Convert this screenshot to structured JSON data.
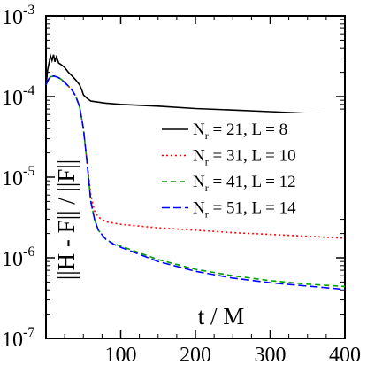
{
  "chart_data": {
    "type": "line",
    "title": "",
    "xlabel": "t / M",
    "ylabel": "||H - F|| / ||F||",
    "xlim": [
      0,
      400
    ],
    "ylim": [
      1e-07,
      0.001
    ],
    "yscale": "log",
    "grid": false,
    "legend_position": "right",
    "x_ticks": [
      {
        "value": 100,
        "label": "100"
      },
      {
        "value": 200,
        "label": "200"
      },
      {
        "value": 300,
        "label": "300"
      },
      {
        "value": 400,
        "label": "400"
      }
    ],
    "y_ticks": [
      {
        "exp": -3,
        "base": "10",
        "sup": "-3"
      },
      {
        "exp": -4,
        "base": "10",
        "sup": "-4"
      },
      {
        "exp": -5,
        "base": "10",
        "sup": "-5"
      },
      {
        "exp": -6,
        "base": "10",
        "sup": "-6"
      },
      {
        "exp": -7,
        "base": "10",
        "sup": "-7"
      }
    ],
    "series": [
      {
        "name": "N_r = 21, L = 8",
        "legend": {
          "n": "N",
          "sub": "r",
          "text": " = 21,  L = 8"
        },
        "color": "#000000",
        "dash": "",
        "points": [
          [
            0,
            0.00013
          ],
          [
            2,
            0.00021
          ],
          [
            4,
            0.00026
          ],
          [
            6,
            0.00032
          ],
          [
            8,
            0.00028
          ],
          [
            10,
            0.00033
          ],
          [
            12,
            0.00027
          ],
          [
            14,
            0.00031
          ],
          [
            17,
            0.00026
          ],
          [
            20,
            0.00025
          ],
          [
            25,
            0.00023
          ],
          [
            30,
            0.0002
          ],
          [
            35,
            0.00018
          ],
          [
            40,
            0.00016
          ],
          [
            45,
            0.00014
          ],
          [
            48,
            0.00012
          ],
          [
            50,
            0.000105
          ],
          [
            55,
            9.5e-05
          ],
          [
            60,
            8.8e-05
          ],
          [
            80,
            8.3e-05
          ],
          [
            100,
            8e-05
          ],
          [
            150,
            7.6e-05
          ],
          [
            200,
            7.1e-05
          ],
          [
            250,
            6.8e-05
          ],
          [
            300,
            6.5e-05
          ],
          [
            350,
            6.2e-05
          ],
          [
            400,
            5.9e-05
          ]
        ]
      },
      {
        "name": "N_r = 31, L = 10",
        "legend": {
          "n": "N",
          "sub": "r",
          "text": " = 31,  L = 10"
        },
        "color": "#ff0000",
        "dash": "2,3",
        "points": [
          [
            0,
            0.00014
          ],
          [
            5,
            0.000175
          ],
          [
            10,
            0.00018
          ],
          [
            15,
            0.000175
          ],
          [
            20,
            0.000165
          ],
          [
            25,
            0.00015
          ],
          [
            30,
            0.000135
          ],
          [
            35,
            0.00012
          ],
          [
            40,
            0.0001
          ],
          [
            45,
            7.5e-05
          ],
          [
            50,
            4e-05
          ],
          [
            55,
            1.5e-05
          ],
          [
            60,
            6e-06
          ],
          [
            65,
            3.8e-06
          ],
          [
            70,
            3.2e-06
          ],
          [
            80,
            2.8e-06
          ],
          [
            100,
            2.6e-06
          ],
          [
            150,
            2.35e-06
          ],
          [
            200,
            2.2e-06
          ],
          [
            250,
            2.05e-06
          ],
          [
            300,
            1.95e-06
          ],
          [
            350,
            1.85e-06
          ],
          [
            400,
            1.75e-06
          ]
        ]
      },
      {
        "name": "N_r = 41, L = 12",
        "legend": {
          "n": "N",
          "sub": "r",
          "text": " = 41,  L = 12"
        },
        "color": "#00a000",
        "dash": "6,4",
        "points": [
          [
            0,
            0.00014
          ],
          [
            5,
            0.000175
          ],
          [
            10,
            0.00018
          ],
          [
            15,
            0.000175
          ],
          [
            20,
            0.000165
          ],
          [
            25,
            0.00015
          ],
          [
            30,
            0.000135
          ],
          [
            35,
            0.00012
          ],
          [
            40,
            0.0001
          ],
          [
            45,
            7.5e-05
          ],
          [
            50,
            4e-05
          ],
          [
            55,
            1.5e-05
          ],
          [
            60,
            5e-06
          ],
          [
            65,
            3e-06
          ],
          [
            70,
            2.2e-06
          ],
          [
            80,
            1.7e-06
          ],
          [
            90,
            1.5e-06
          ],
          [
            100,
            1.4e-06
          ],
          [
            150,
            9.5e-07
          ],
          [
            200,
            7.2e-07
          ],
          [
            250,
            6e-07
          ],
          [
            300,
            5.2e-07
          ],
          [
            350,
            4.7e-07
          ],
          [
            400,
            4.4e-07
          ]
        ]
      },
      {
        "name": "N_r = 51, L = 14",
        "legend": {
          "n": "N",
          "sub": "r",
          "text": " = 51,  L = 14"
        },
        "color": "#0000ff",
        "dash": "9,4",
        "points": [
          [
            0,
            0.00014
          ],
          [
            5,
            0.000175
          ],
          [
            10,
            0.00018
          ],
          [
            15,
            0.000175
          ],
          [
            20,
            0.000165
          ],
          [
            25,
            0.00015
          ],
          [
            30,
            0.000135
          ],
          [
            35,
            0.00012
          ],
          [
            40,
            0.0001
          ],
          [
            45,
            7.5e-05
          ],
          [
            50,
            4e-05
          ],
          [
            55,
            1.5e-05
          ],
          [
            60,
            5e-06
          ],
          [
            65,
            3e-06
          ],
          [
            70,
            2.2e-06
          ],
          [
            80,
            1.7e-06
          ],
          [
            90,
            1.48e-06
          ],
          [
            100,
            1.35e-06
          ],
          [
            150,
            9e-07
          ],
          [
            200,
            6.8e-07
          ],
          [
            250,
            5.6e-07
          ],
          [
            300,
            4.9e-07
          ],
          [
            350,
            4.45e-07
          ],
          [
            400,
            4.05e-07
          ]
        ]
      }
    ]
  }
}
